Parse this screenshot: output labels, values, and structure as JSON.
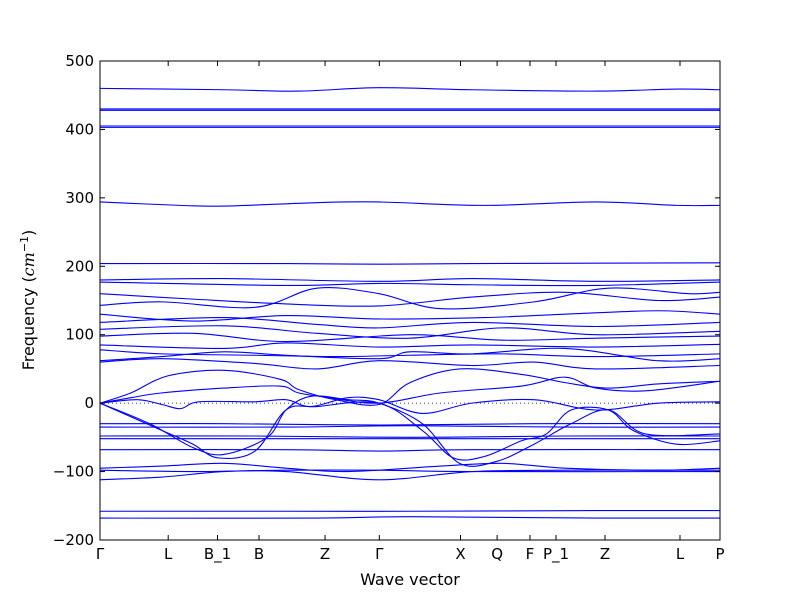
{
  "chart_data": {
    "type": "line",
    "title": "",
    "xlabel": "Wave vector",
    "ylabel_text": "Frequency (",
    "ylabel_unit": "cm",
    "ylabel_exp": "−1",
    "ylabel_close": ")",
    "ylim": [
      -200,
      500
    ],
    "yticks": [
      -200,
      -100,
      0,
      100,
      200,
      300,
      400,
      500
    ],
    "xlim": [
      0,
      1
    ],
    "line_color": "#0000ff",
    "zero_line": "dotted",
    "high_symmetry_points": [
      {
        "label": "Γ",
        "x": 0.0
      },
      {
        "label": "L",
        "x": 0.11
      },
      {
        "label": "B_1",
        "x": 0.1895
      },
      {
        "label": "B",
        "x": 0.2565
      },
      {
        "label": "Z",
        "x": 0.363
      },
      {
        "label": "Γ",
        "x": 0.4505
      },
      {
        "label": "X",
        "x": 0.5815
      },
      {
        "label": "Q",
        "x": 0.6405
      },
      {
        "label": "F",
        "x": 0.6935
      },
      {
        "label": "P_1",
        "x": 0.7355
      },
      {
        "label": "Z",
        "x": 0.8145
      },
      {
        "label": "L",
        "x": 0.9355
      },
      {
        "label": "P",
        "x": 1.0
      }
    ],
    "series": [
      {
        "points": [
          [
            0,
            460
          ],
          [
            0.2,
            458
          ],
          [
            0.32,
            456
          ],
          [
            0.45,
            461
          ],
          [
            0.6,
            458
          ],
          [
            0.8,
            456
          ],
          [
            0.93,
            459
          ],
          [
            1,
            458
          ]
        ]
      },
      {
        "points": [
          [
            0,
            430
          ],
          [
            1,
            430
          ]
        ]
      },
      {
        "points": [
          [
            0,
            428
          ],
          [
            1,
            428
          ]
        ]
      },
      {
        "points": [
          [
            0,
            405
          ],
          [
            1,
            405
          ]
        ]
      },
      {
        "points": [
          [
            0,
            403
          ],
          [
            1,
            403
          ]
        ]
      },
      {
        "points": [
          [
            0,
            294
          ],
          [
            0.13,
            289
          ],
          [
            0.2,
            288
          ],
          [
            0.35,
            293
          ],
          [
            0.45,
            294
          ],
          [
            0.62,
            289
          ],
          [
            0.8,
            294
          ],
          [
            0.93,
            289
          ],
          [
            1,
            289
          ]
        ]
      },
      {
        "points": [
          [
            0,
            204
          ],
          [
            0.3,
            204
          ],
          [
            0.45,
            203
          ],
          [
            0.6,
            204
          ],
          [
            1,
            205
          ]
        ]
      },
      {
        "points": [
          [
            0,
            180
          ],
          [
            0.2,
            182
          ],
          [
            0.45,
            178
          ],
          [
            0.6,
            182
          ],
          [
            0.8,
            178
          ],
          [
            1,
            180
          ]
        ]
      },
      {
        "points": [
          [
            0,
            177
          ],
          [
            0.3,
            172
          ],
          [
            0.45,
            175
          ],
          [
            0.6,
            173
          ],
          [
            0.8,
            172
          ],
          [
            1,
            177
          ]
        ]
      },
      {
        "points": [
          [
            0,
            160
          ],
          [
            0.15,
            152
          ],
          [
            0.3,
            145
          ],
          [
            0.45,
            142
          ],
          [
            0.6,
            155
          ],
          [
            0.75,
            162
          ],
          [
            0.9,
            150
          ],
          [
            1,
            155
          ]
        ]
      },
      {
        "points": [
          [
            0,
            143
          ],
          [
            0.1,
            148
          ],
          [
            0.25,
            140
          ],
          [
            0.35,
            168
          ],
          [
            0.45,
            160
          ],
          [
            0.55,
            138
          ],
          [
            0.7,
            148
          ],
          [
            0.82,
            168
          ],
          [
            0.95,
            160
          ],
          [
            1,
            162
          ]
        ]
      },
      {
        "points": [
          [
            0,
            130
          ],
          [
            0.15,
            120
          ],
          [
            0.3,
            128
          ],
          [
            0.45,
            123
          ],
          [
            0.62,
            125
          ],
          [
            0.75,
            130
          ],
          [
            0.9,
            135
          ],
          [
            1,
            130
          ]
        ]
      },
      {
        "points": [
          [
            0,
            118
          ],
          [
            0.2,
            125
          ],
          [
            0.35,
            115
          ],
          [
            0.45,
            110
          ],
          [
            0.6,
            118
          ],
          [
            0.8,
            112
          ],
          [
            1,
            118
          ]
        ]
      },
      {
        "points": [
          [
            0,
            108
          ],
          [
            0.2,
            113
          ],
          [
            0.35,
            102
          ],
          [
            0.5,
            95
          ],
          [
            0.65,
            110
          ],
          [
            0.8,
            100
          ],
          [
            1,
            105
          ]
        ]
      },
      {
        "points": [
          [
            0,
            98
          ],
          [
            0.15,
            102
          ],
          [
            0.3,
            90
          ],
          [
            0.5,
            100
          ],
          [
            0.65,
            92
          ],
          [
            0.8,
            95
          ],
          [
            1,
            98
          ]
        ]
      },
      {
        "points": [
          [
            0,
            85
          ],
          [
            0.2,
            80
          ],
          [
            0.3,
            88
          ],
          [
            0.45,
            82
          ],
          [
            0.6,
            85
          ],
          [
            0.8,
            82
          ],
          [
            1,
            86
          ]
        ]
      },
      {
        "points": [
          [
            0,
            78
          ],
          [
            0.1,
            72
          ],
          [
            0.25,
            70
          ],
          [
            0.38,
            68
          ],
          [
            0.5,
            70
          ],
          [
            0.65,
            72
          ],
          [
            0.8,
            68
          ],
          [
            1,
            72
          ]
        ]
      },
      {
        "points": [
          [
            0,
            62
          ],
          [
            0.1,
            68
          ],
          [
            0.2,
            75
          ],
          [
            0.3,
            70
          ],
          [
            0.45,
            65
          ],
          [
            0.5,
            75
          ],
          [
            0.6,
            72
          ],
          [
            0.75,
            80
          ],
          [
            0.9,
            62
          ],
          [
            1,
            65
          ]
        ]
      },
      {
        "points": [
          [
            0,
            60
          ],
          [
            0.1,
            65
          ],
          [
            0.25,
            58
          ],
          [
            0.35,
            50
          ],
          [
            0.45,
            62
          ],
          [
            0.6,
            55
          ],
          [
            0.7,
            60
          ],
          [
            0.8,
            50
          ],
          [
            1,
            55
          ]
        ]
      },
      {
        "points": [
          [
            0,
            0
          ],
          [
            0.05,
            15
          ],
          [
            0.11,
            40
          ],
          [
            0.2,
            48
          ],
          [
            0.29,
            35
          ],
          [
            0.32,
            20
          ],
          [
            0.38,
            5
          ],
          [
            0.45,
            -2
          ],
          [
            0.5,
            30
          ],
          [
            0.58,
            50
          ],
          [
            0.68,
            42
          ],
          [
            0.75,
            30
          ],
          [
            0.82,
            22
          ],
          [
            0.9,
            28
          ],
          [
            1,
            32
          ]
        ]
      },
      {
        "points": [
          [
            0,
            0
          ],
          [
            0.05,
            8
          ],
          [
            0.1,
            15
          ],
          [
            0.2,
            22
          ],
          [
            0.29,
            25
          ],
          [
            0.32,
            15
          ],
          [
            0.37,
            8
          ],
          [
            0.45,
            0
          ],
          [
            0.55,
            15
          ],
          [
            0.68,
            25
          ],
          [
            0.75,
            38
          ],
          [
            0.8,
            22
          ],
          [
            0.88,
            18
          ],
          [
            1,
            32
          ]
        ]
      },
      {
        "points": [
          [
            0,
            0
          ],
          [
            0.06,
            5
          ],
          [
            0.1,
            -2
          ],
          [
            0.13,
            -8
          ],
          [
            0.16,
            2
          ],
          [
            0.25,
            2
          ],
          [
            0.3,
            5
          ],
          [
            0.34,
            -5
          ],
          [
            0.4,
            8
          ],
          [
            0.45,
            5
          ],
          [
            0.52,
            -15
          ],
          [
            0.6,
            0
          ],
          [
            0.7,
            5
          ],
          [
            0.8,
            -10
          ],
          [
            0.9,
            0
          ],
          [
            1,
            2
          ]
        ]
      },
      {
        "points": [
          [
            0,
            -30
          ],
          [
            0.2,
            -30
          ],
          [
            0.45,
            -32
          ],
          [
            0.7,
            -30
          ],
          [
            1,
            -30
          ]
        ]
      },
      {
        "points": [
          [
            0,
            -35
          ],
          [
            0.3,
            -35
          ],
          [
            0.5,
            -33
          ],
          [
            0.75,
            -35
          ],
          [
            1,
            -35
          ]
        ]
      },
      {
        "points": [
          [
            0,
            -48
          ],
          [
            0.25,
            -48
          ],
          [
            0.5,
            -50
          ],
          [
            0.75,
            -48
          ],
          [
            1,
            -48
          ]
        ]
      },
      {
        "points": [
          [
            0,
            -52
          ],
          [
            0.3,
            -52
          ],
          [
            0.5,
            -52
          ],
          [
            0.8,
            -52
          ],
          [
            1,
            -52
          ]
        ]
      },
      {
        "points": [
          [
            0,
            0
          ],
          [
            0.05,
            -20
          ],
          [
            0.1,
            -40
          ],
          [
            0.15,
            -60
          ],
          [
            0.19,
            -80
          ],
          [
            0.25,
            -70
          ],
          [
            0.3,
            -10
          ],
          [
            0.35,
            -5
          ],
          [
            0.45,
            0
          ],
          [
            0.52,
            -40
          ],
          [
            0.57,
            -80
          ],
          [
            0.62,
            -78
          ],
          [
            0.68,
            -55
          ],
          [
            0.72,
            -45
          ],
          [
            0.76,
            -10
          ],
          [
            0.82,
            -10
          ],
          [
            0.86,
            -40
          ],
          [
            0.93,
            -60
          ],
          [
            1,
            -55
          ]
        ]
      },
      {
        "points": [
          [
            0,
            0
          ],
          [
            0.08,
            -30
          ],
          [
            0.15,
            -65
          ],
          [
            0.2,
            -75
          ],
          [
            0.27,
            -50
          ],
          [
            0.3,
            -10
          ],
          [
            0.34,
            10
          ],
          [
            0.4,
            5
          ],
          [
            0.45,
            0
          ],
          [
            0.52,
            -30
          ],
          [
            0.58,
            -88
          ],
          [
            0.64,
            -85
          ],
          [
            0.7,
            -60
          ],
          [
            0.76,
            -30
          ],
          [
            0.82,
            -10
          ],
          [
            0.88,
            -45
          ],
          [
            1,
            -45
          ]
        ]
      },
      {
        "points": [
          [
            0,
            -68
          ],
          [
            0.3,
            -68
          ],
          [
            0.45,
            -70
          ],
          [
            0.6,
            -68
          ],
          [
            1,
            -68
          ]
        ]
      },
      {
        "points": [
          [
            0,
            -95
          ],
          [
            0.1,
            -92
          ],
          [
            0.2,
            -88
          ],
          [
            0.3,
            -95
          ],
          [
            0.4,
            -100
          ],
          [
            0.55,
            -92
          ],
          [
            0.65,
            -88
          ],
          [
            0.75,
            -95
          ],
          [
            0.9,
            -98
          ],
          [
            1,
            -95
          ]
        ]
      },
      {
        "points": [
          [
            0,
            -98
          ],
          [
            0.15,
            -100
          ],
          [
            0.3,
            -98
          ],
          [
            0.45,
            -98
          ],
          [
            0.6,
            -100
          ],
          [
            1,
            -100
          ]
        ]
      },
      {
        "points": [
          [
            0,
            -112
          ],
          [
            0.1,
            -108
          ],
          [
            0.2,
            -100
          ],
          [
            0.3,
            -100
          ],
          [
            0.45,
            -112
          ],
          [
            0.6,
            -100
          ],
          [
            0.75,
            -98
          ],
          [
            0.9,
            -98
          ],
          [
            1,
            -98
          ]
        ]
      },
      {
        "points": [
          [
            0,
            -158
          ],
          [
            0.3,
            -158
          ],
          [
            0.5,
            -158
          ],
          [
            0.8,
            -157
          ],
          [
            1,
            -157
          ]
        ]
      },
      {
        "points": [
          [
            0,
            -168
          ],
          [
            0.35,
            -168
          ],
          [
            0.5,
            -166
          ],
          [
            0.8,
            -168
          ],
          [
            1,
            -168
          ]
        ]
      }
    ]
  }
}
